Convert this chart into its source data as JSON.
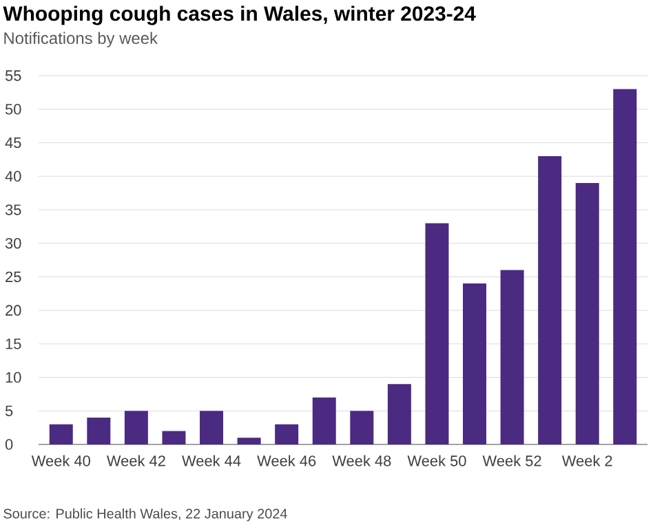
{
  "chart_data": {
    "type": "bar",
    "title": "Whooping cough cases in Wales, winter 2023-24",
    "subtitle": "Notifications by week",
    "categories": [
      "Week 40",
      null,
      "Week 42",
      null,
      "Week 44",
      null,
      "Week 46",
      null,
      "Week 48",
      null,
      "Week 50",
      null,
      "Week 52",
      null,
      "Week 2",
      null
    ],
    "values": [
      3,
      4,
      5,
      2,
      5,
      1,
      3,
      7,
      5,
      9,
      33,
      24,
      26,
      43,
      39,
      53
    ],
    "color": "#4b2a82",
    "ylim": [
      0,
      55
    ],
    "yticks": [
      0,
      5,
      10,
      15,
      20,
      25,
      30,
      35,
      40,
      45,
      50,
      55
    ],
    "grid": "y",
    "annotations": [
      "Source: Public Health Wales, 22 January 2024"
    ]
  }
}
